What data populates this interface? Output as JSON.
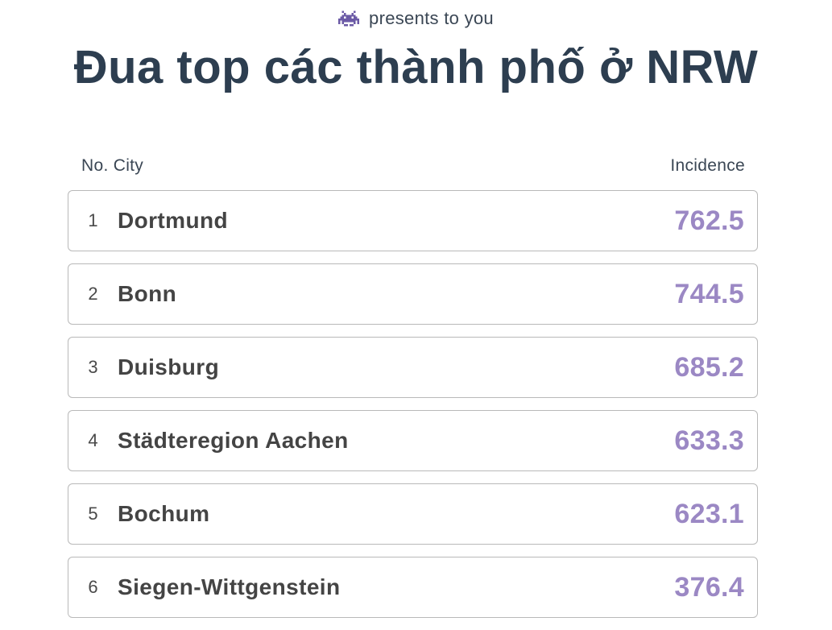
{
  "header": {
    "icon": "space-invader-icon",
    "presents_text": "presents to you",
    "title": "Đua top các thành phố ở NRW"
  },
  "table": {
    "col_no": "No.",
    "col_city": "City",
    "col_incidence": "Incidence",
    "rows": [
      {
        "rank": "1",
        "city": "Dortmund",
        "incidence": "762.5"
      },
      {
        "rank": "2",
        "city": "Bonn",
        "incidence": "744.5"
      },
      {
        "rank": "3",
        "city": "Duisburg",
        "incidence": "685.2"
      },
      {
        "rank": "4",
        "city": "Städteregion Aachen",
        "incidence": "633.3"
      },
      {
        "rank": "5",
        "city": "Bochum",
        "incidence": "623.1"
      },
      {
        "rank": "6",
        "city": "Siegen-Wittgenstein",
        "incidence": "376.4"
      }
    ]
  },
  "colors": {
    "title": "#2d3e50",
    "value_accent": "#9b88c4",
    "icon": "#6b5aa6",
    "row_border": "#b9b9b9"
  }
}
